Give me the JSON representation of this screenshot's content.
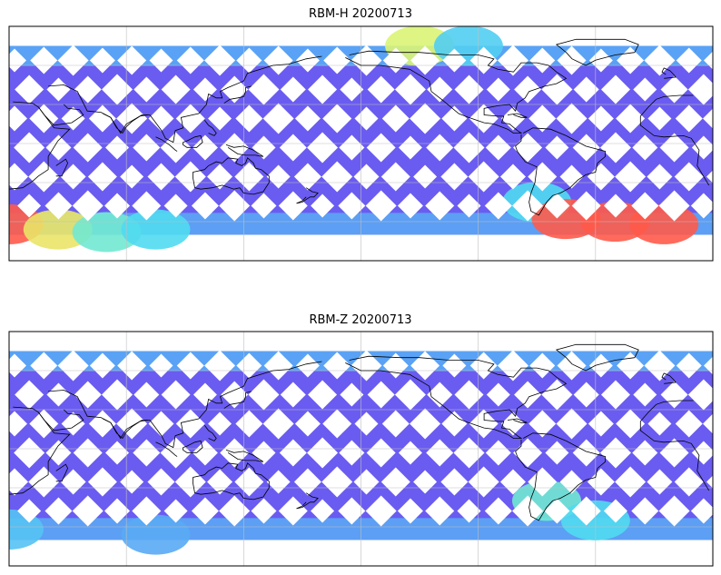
{
  "panels": [
    {
      "id": "rbm-h",
      "title": "RBM-H 20200713",
      "hotspots": [
        {
          "lon": 20,
          "lat": -62,
          "level": 1.0
        },
        {
          "lon": 45,
          "lat": -66,
          "level": 0.75
        },
        {
          "lon": 70,
          "lat": -68,
          "level": 0.55
        },
        {
          "lon": 95,
          "lat": -66,
          "level": 0.45
        },
        {
          "lon": 230,
          "lat": 75,
          "level": 0.7
        },
        {
          "lon": 255,
          "lat": 75,
          "level": 0.4
        },
        {
          "lon": 290,
          "lat": -45,
          "level": 0.45
        },
        {
          "lon": 305,
          "lat": -58,
          "level": 1.0
        },
        {
          "lon": 330,
          "lat": -60,
          "level": 1.0
        },
        {
          "lon": 355,
          "lat": -62,
          "level": 1.0
        }
      ]
    },
    {
      "id": "rbm-z",
      "title": "RBM-Z 20200713",
      "hotspots": [
        {
          "lon": 20,
          "lat": -62,
          "level": 0.35
        },
        {
          "lon": 95,
          "lat": -66,
          "level": 0.25
        },
        {
          "lon": 295,
          "lat": -40,
          "level": 0.55
        },
        {
          "lon": 320,
          "lat": -55,
          "level": 0.45
        }
      ]
    }
  ],
  "colors": {
    "low": "#6a5cf0",
    "mid": "#59aaf5",
    "cyan": "#4ee6f0",
    "yellow": "#e8f56a",
    "high": "#ff5a4a",
    "grid": "#bfbfbf",
    "coast": "#000000"
  }
}
